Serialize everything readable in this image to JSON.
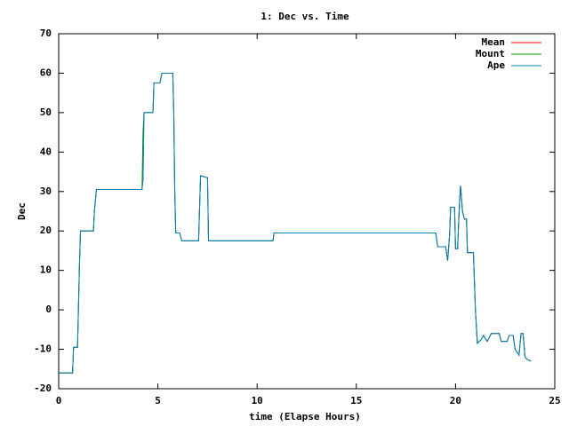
{
  "chart_data": {
    "type": "line",
    "title": "1: Dec vs. Time",
    "xlabel": "time (Elapse Hours)",
    "ylabel": "Dec",
    "x": [
      0,
      0.7,
      0.75,
      0.95,
      1.05,
      1.1,
      1.75,
      1.8,
      1.9,
      4.2,
      4.25,
      4.3,
      4.75,
      4.8,
      5.1,
      5.2,
      5.75,
      5.8,
      5.85,
      5.9,
      6.1,
      6.2,
      7.05,
      7.15,
      7.5,
      7.55,
      10.8,
      10.85,
      19.0,
      19.1,
      19.5,
      19.6,
      19.7,
      19.75,
      19.95,
      20.0,
      20.1,
      20.2,
      20.25,
      20.35,
      20.45,
      20.55,
      20.6,
      20.9,
      21.0,
      21.1,
      21.3,
      21.4,
      21.6,
      21.8,
      22.2,
      22.3,
      22.6,
      22.7,
      22.9,
      23.0,
      23.2,
      23.3,
      23.4,
      23.5,
      23.6,
      23.8
    ],
    "series": [
      {
        "name": "Mean",
        "color": "#ff0000",
        "values": [
          -16,
          -16,
          -9.5,
          -9.5,
          12,
          20,
          20,
          25,
          30.5,
          30.5,
          33,
          50,
          50,
          57.5,
          57.5,
          60,
          60,
          50,
          30,
          19.5,
          19.5,
          17.5,
          17.5,
          34,
          33.5,
          17.5,
          17.5,
          19.5,
          19.5,
          16,
          16,
          12.5,
          19,
          26,
          26,
          15.5,
          15.5,
          27,
          31.5,
          25,
          23,
          23,
          14.5,
          14.5,
          0,
          -8.5,
          -7.5,
          -6.5,
          -8,
          -6,
          -6,
          -8,
          -8,
          -6.5,
          -6.5,
          -10,
          -11.5,
          -6,
          -6,
          -12,
          -12.5,
          -13
        ]
      },
      {
        "name": "Mount",
        "color": "#00a000",
        "values": [
          -16,
          -16,
          -9.5,
          -9.5,
          12,
          20,
          20,
          25,
          30.5,
          30.5,
          45,
          50,
          50,
          57.5,
          57.5,
          60,
          60,
          50,
          30,
          19.5,
          19.5,
          17.5,
          17.5,
          34,
          33.5,
          17.5,
          17.5,
          19.5,
          19.5,
          16,
          16,
          12.5,
          19,
          26,
          26,
          15.5,
          15.5,
          27,
          31.5,
          25,
          23,
          23,
          14.5,
          14.5,
          0,
          -8.5,
          -7.5,
          -6.5,
          -8,
          -6,
          -6,
          -8,
          -8,
          -6.5,
          -6.5,
          -10,
          -11.5,
          -6,
          -6,
          -12,
          -12.5,
          -13
        ]
      },
      {
        "name": "Ape",
        "color": "#0080c0",
        "values": [
          -16,
          -16,
          -9.5,
          -9.5,
          12,
          20,
          20,
          25,
          30.5,
          30.5,
          33,
          50,
          50,
          57.5,
          57.5,
          60,
          60,
          50,
          30,
          19.5,
          19.5,
          17.5,
          17.5,
          34,
          33.5,
          17.5,
          17.5,
          19.5,
          19.5,
          16,
          16,
          12.5,
          19,
          26,
          26,
          15.5,
          15.5,
          27,
          31.5,
          25,
          23,
          23,
          14.5,
          14.5,
          0,
          -8.5,
          -7.5,
          -6.5,
          -8,
          -6,
          -6,
          -8,
          -8,
          -6.5,
          -6.5,
          -10,
          -11.5,
          -6,
          -6,
          -12,
          -12.5,
          -13
        ]
      }
    ],
    "xlim": [
      0,
      25
    ],
    "xticks": [
      0,
      5,
      10,
      15,
      20,
      25
    ],
    "ylim": [
      -20,
      70
    ],
    "yticks": [
      -20,
      -10,
      0,
      10,
      20,
      30,
      40,
      50,
      60,
      70
    ],
    "legend": "top-right"
  }
}
